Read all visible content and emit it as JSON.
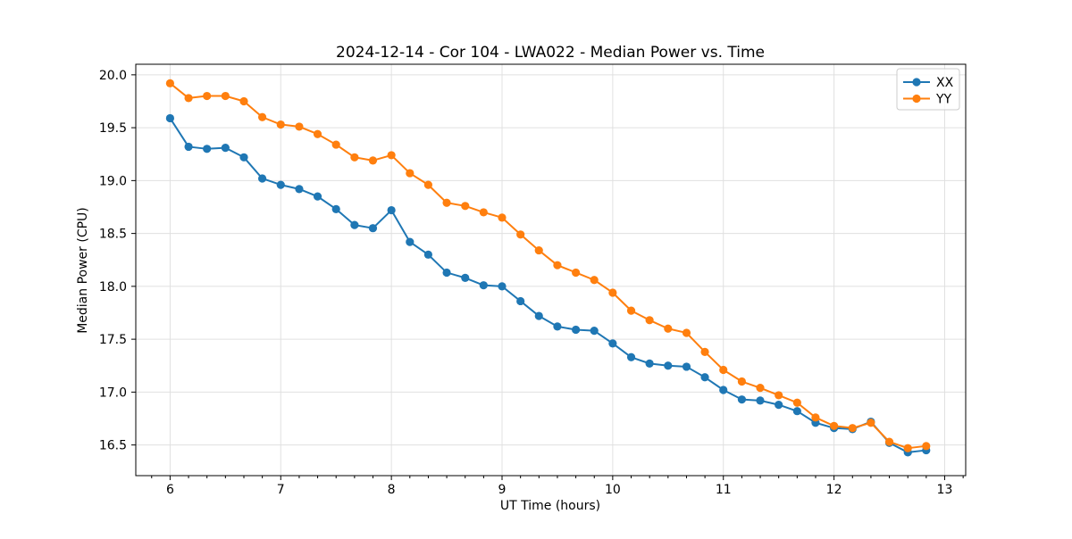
{
  "chart_data": {
    "type": "line",
    "title": "2024-12-14 - Cor 104 - LWA022 - Median Power vs. Time",
    "xlabel": "UT Time (hours)",
    "ylabel": "Median Power (CPU)",
    "xlim": [
      5.69,
      13.19
    ],
    "ylim": [
      16.21,
      20.1
    ],
    "xticks": [
      6,
      7,
      8,
      9,
      10,
      11,
      12,
      13
    ],
    "xtick_labels": [
      "6",
      "7",
      "8",
      "9",
      "10",
      "11",
      "12",
      "13"
    ],
    "x_minor_interval": 0.16667,
    "yticks": [
      16.5,
      17.0,
      17.5,
      18.0,
      18.5,
      19.0,
      19.5,
      20.0
    ],
    "ytick_labels": [
      "16.5",
      "17.0",
      "17.5",
      "18.0",
      "18.5",
      "19.0",
      "19.5",
      "20.0"
    ],
    "grid": true,
    "legend_position": "upper right",
    "marker": "o",
    "x": [
      6.0,
      6.167,
      6.333,
      6.5,
      6.667,
      6.833,
      7.0,
      7.167,
      7.333,
      7.5,
      7.667,
      7.833,
      8.0,
      8.167,
      8.333,
      8.5,
      8.667,
      8.833,
      9.0,
      9.167,
      9.333,
      9.5,
      9.667,
      9.833,
      10.0,
      10.167,
      10.333,
      10.5,
      10.667,
      10.833,
      11.0,
      11.167,
      11.333,
      11.5,
      11.667,
      11.833,
      12.0,
      12.167,
      12.333,
      12.5,
      12.667,
      12.833
    ],
    "series": [
      {
        "name": "XX",
        "color": "#1f77b4",
        "values": [
          19.59,
          19.32,
          19.3,
          19.31,
          19.22,
          19.02,
          18.96,
          18.92,
          18.85,
          18.73,
          18.58,
          18.55,
          18.72,
          18.42,
          18.3,
          18.13,
          18.08,
          18.01,
          18.0,
          17.86,
          17.72,
          17.62,
          17.59,
          17.58,
          17.46,
          17.33,
          17.27,
          17.25,
          17.24,
          17.14,
          17.02,
          16.93,
          16.92,
          16.88,
          16.82,
          16.71,
          16.66,
          16.65,
          16.72,
          16.52,
          16.43,
          16.45
        ]
      },
      {
        "name": "YY",
        "color": "#ff7f0e",
        "values": [
          19.92,
          19.78,
          19.8,
          19.8,
          19.75,
          19.6,
          19.53,
          19.51,
          19.44,
          19.34,
          19.22,
          19.19,
          19.24,
          19.07,
          18.96,
          18.79,
          18.76,
          18.7,
          18.65,
          18.49,
          18.34,
          18.2,
          18.13,
          18.06,
          17.94,
          17.77,
          17.68,
          17.6,
          17.56,
          17.38,
          17.21,
          17.1,
          17.04,
          16.97,
          16.9,
          16.76,
          16.68,
          16.66,
          16.71,
          16.53,
          16.47,
          16.49
        ]
      }
    ]
  },
  "colors": {
    "grid": "#e0e0e0",
    "spine": "#000000",
    "tick": "#000000",
    "legend_border": "#cccccc",
    "legend_background": "#ffffff"
  }
}
